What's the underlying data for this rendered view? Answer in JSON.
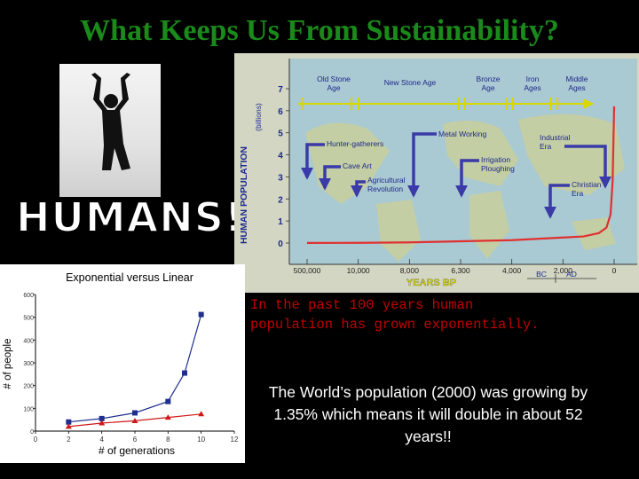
{
  "slide": {
    "title": "What Keeps Us From Sustainability?",
    "humans_label": "HUMANS!!",
    "caption": "In the past 100 years human\npopulation has grown exponentially.",
    "fact": "The World’s population (2000) was growing by 1.35% which means it will double in about 52 years!!"
  },
  "colors": {
    "title_green": "#1a8a1a",
    "caption_red": "#c00000",
    "pop_curve": "#e03030",
    "era_line": "#d8d800",
    "arrow_blue": "#3a3aa8",
    "exponential_series": "#1f2f8f",
    "linear_series": "#d01818"
  },
  "chart_data": [
    {
      "type": "line",
      "ylabel": "HUMAN POPULATION",
      "yunit": "(billions)",
      "xlabel": "YEARS BP",
      "ylim": [
        0,
        7
      ],
      "yticks": [
        "0",
        "1",
        "2",
        "3",
        "4",
        "5",
        "6",
        "7"
      ],
      "xtick_labels": [
        "500,000",
        "10,000",
        "8,000",
        "6,300",
        "4,000",
        "2,000",
        "0"
      ],
      "era_labels": [
        {
          "text": "Old Stone Age",
          "lines": [
            "Old Stone",
            "Age"
          ]
        },
        {
          "text": "New Stone Age",
          "lines": [
            "New Stone Age"
          ]
        },
        {
          "text": "Bronze Age",
          "lines": [
            "Bronze",
            "Age"
          ]
        },
        {
          "text": "Iron Ages",
          "lines": [
            "Iron",
            "Ages"
          ]
        },
        {
          "text": "Middle Ages",
          "lines": [
            "Middle",
            "Ages"
          ]
        }
      ],
      "milestones": [
        {
          "lines": [
            "Hunter-gatherers"
          ]
        },
        {
          "lines": [
            "Cave Art"
          ]
        },
        {
          "lines": [
            "Agricultural",
            "Revolution"
          ]
        },
        {
          "lines": [
            "Metal Working"
          ]
        },
        {
          "lines": [
            "Irrigation",
            "Ploughing"
          ]
        },
        {
          "lines": [
            "Industrial",
            "Era"
          ]
        },
        {
          "lines": [
            "Christian",
            "Era"
          ]
        }
      ],
      "era_markers": [
        "BC",
        "AD"
      ],
      "series": [
        {
          "x_tick_index": [
            0,
            1,
            2,
            3,
            4,
            5,
            5.4,
            5.7,
            5.85,
            5.93,
            5.97,
            6
          ],
          "values": [
            0.005,
            0.01,
            0.03,
            0.08,
            0.13,
            0.25,
            0.3,
            0.45,
            0.7,
            1.3,
            2.8,
            6.2
          ]
        }
      ],
      "grid": false
    },
    {
      "type": "scatter",
      "title": "Exponential versus Linear",
      "xlabel": "# of generations",
      "ylabel": "# of people",
      "xlim": [
        0,
        12
      ],
      "ylim": [
        0,
        600
      ],
      "xticks": [
        "0",
        "2",
        "4",
        "6",
        "8",
        "10",
        "12"
      ],
      "yticks": [
        "0",
        "100",
        "200",
        "300",
        "400",
        "500",
        "600"
      ],
      "grid": false,
      "series": [
        {
          "x": [
            2,
            4,
            6,
            8,
            9,
            10
          ],
          "values": [
            40,
            55,
            80,
            130,
            255,
            512
          ],
          "marker": "square"
        },
        {
          "x": [
            2,
            4,
            6,
            8,
            10
          ],
          "values": [
            20,
            35,
            45,
            60,
            75
          ],
          "marker": "triangle"
        }
      ]
    }
  ]
}
